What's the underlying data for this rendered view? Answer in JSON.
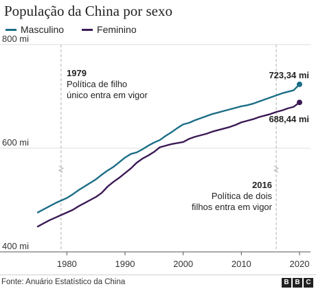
{
  "title": "População da China por sexo",
  "legend": [
    {
      "label": "Masculino",
      "color": "#1b6e86"
    },
    {
      "label": "Feminino",
      "color": "#3b1a55"
    }
  ],
  "annotations": {
    "policy_1979_year": "1979",
    "policy_1979_line1": "Política de filho",
    "policy_1979_line2": "único entra em vigor",
    "policy_2016_year": "2016",
    "policy_2016_line1": "Política de dois",
    "policy_2016_line2": "filhos entra em vigor",
    "male_end_label": "723,34 mi",
    "female_end_label": "688,44 mi"
  },
  "source": "Fonte: Anuário Estatístico da China",
  "brand": [
    "B",
    "B",
    "C"
  ],
  "chart_data": {
    "type": "line",
    "title": "População da China por sexo",
    "xlabel": "",
    "ylabel": "",
    "xlim": [
      1975,
      2020
    ],
    "ylim": [
      400,
      800
    ],
    "y_ticks": [
      400,
      600,
      800
    ],
    "y_tick_labels": [
      "400 mi",
      "600 mi",
      "800 mi"
    ],
    "x_ticks": [
      1980,
      1990,
      2000,
      2010,
      2020
    ],
    "x_tick_labels": [
      "1980",
      "1990",
      "2000",
      "2010",
      "2020"
    ],
    "grid": "horizontal",
    "legend_position": "top-left",
    "reference_years": [
      1979,
      2016
    ],
    "x": [
      1975,
      1976,
      1977,
      1978,
      1979,
      1980,
      1981,
      1982,
      1983,
      1984,
      1985,
      1986,
      1987,
      1988,
      1989,
      1990,
      1991,
      1992,
      1993,
      1994,
      1995,
      1996,
      1997,
      1998,
      1999,
      2000,
      2001,
      2002,
      2003,
      2004,
      2005,
      2006,
      2007,
      2008,
      2009,
      2010,
      2011,
      2012,
      2013,
      2014,
      2015,
      2016,
      2017,
      2018,
      2019,
      2020
    ],
    "series": [
      {
        "name": "Masculino",
        "color": "#1b6e86",
        "values": [
          476,
          482,
          488,
          494,
          499,
          504,
          511,
          519,
          526,
          533,
          540,
          549,
          557,
          564,
          573,
          582,
          589,
          592,
          598,
          605,
          611,
          616,
          624,
          631,
          639,
          646,
          649,
          654,
          658,
          662,
          666,
          669,
          672,
          675,
          678,
          681,
          683,
          686,
          690,
          694,
          698,
          702,
          706,
          709,
          712,
          723.34
        ]
      },
      {
        "name": "Feminino",
        "color": "#3b1a55",
        "values": [
          449,
          455,
          461,
          466,
          471,
          476,
          481,
          488,
          494,
          500,
          506,
          514,
          526,
          535,
          543,
          552,
          561,
          572,
          580,
          586,
          593,
          602,
          605,
          608,
          610,
          612,
          618,
          622,
          625,
          628,
          632,
          635,
          638,
          641,
          645,
          650,
          653,
          656,
          660,
          663,
          666,
          670,
          673,
          677,
          680,
          688.44
        ]
      }
    ]
  }
}
